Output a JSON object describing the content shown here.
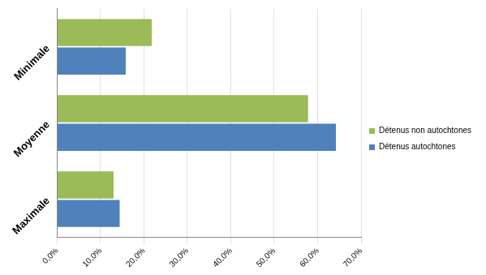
{
  "chart_data": {
    "type": "bar",
    "orientation": "horizontal",
    "categories": [
      "Minimale",
      "Moyenne",
      "Maximale"
    ],
    "series": [
      {
        "name": "Détenus non autochtones",
        "color": "#9bbb59",
        "values": [
          21.8,
          57.8,
          13.0
        ]
      },
      {
        "name": "Détenus autochtones",
        "color": "#4f81bd",
        "values": [
          15.8,
          64.2,
          14.4
        ]
      }
    ],
    "xlim": [
      0,
      70
    ],
    "xticks": [
      {
        "value": 0,
        "label": "0,0%"
      },
      {
        "value": 10,
        "label": "10,0%"
      },
      {
        "value": 20,
        "label": "20,0%"
      },
      {
        "value": 30,
        "label": "30,0%"
      },
      {
        "value": 40,
        "label": "40,0%"
      },
      {
        "value": 50,
        "label": "50,0%"
      },
      {
        "value": 60,
        "label": "60,0%"
      },
      {
        "value": 70,
        "label": "70,0%"
      }
    ],
    "grid": true,
    "legend": "right"
  }
}
